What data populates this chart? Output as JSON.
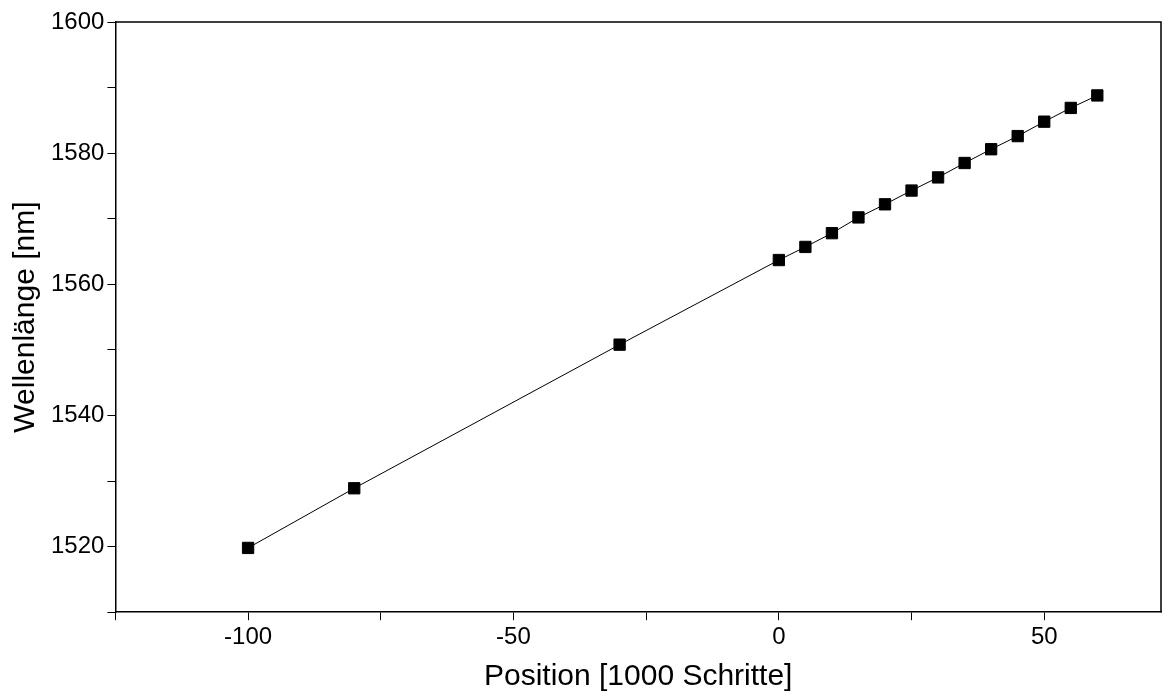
{
  "chart_data": {
    "type": "line",
    "xlabel": "Position [1000 Schritte]",
    "ylabel": "Wellenlänge [nm]",
    "x": [
      -100,
      -80,
      -30,
      0,
      5,
      10,
      15,
      20,
      25,
      30,
      35,
      40,
      45,
      50,
      55,
      60
    ],
    "series": [
      {
        "color": "#000000",
        "values": [
          1519.8,
          1528.9,
          1550.8,
          1563.7,
          1565.7,
          1567.8,
          1570.2,
          1572.2,
          1574.3,
          1576.3,
          1578.5,
          1580.6,
          1582.6,
          1584.8,
          1586.9,
          1588.8
        ]
      }
    ],
    "xlim": [
      -125,
      72
    ],
    "ylim": [
      1510,
      1600
    ],
    "xticks": [
      {
        "value": -125,
        "label": null
      },
      -100,
      {
        "value": -75,
        "label": null
      },
      -50,
      {
        "value": -25,
        "label": null
      },
      0,
      {
        "value": 25,
        "label": null
      },
      50
    ],
    "yticks": [
      {
        "value": 1510,
        "label": null
      },
      1520,
      {
        "value": 1530,
        "label": null
      },
      1540,
      {
        "value": 1550,
        "label": null
      },
      1560,
      {
        "value": 1570,
        "label": null
      },
      1580,
      {
        "value": 1590,
        "label": null
      },
      1600
    ],
    "marker": "square",
    "line_style": "solid",
    "grid": false,
    "legend": false
  }
}
